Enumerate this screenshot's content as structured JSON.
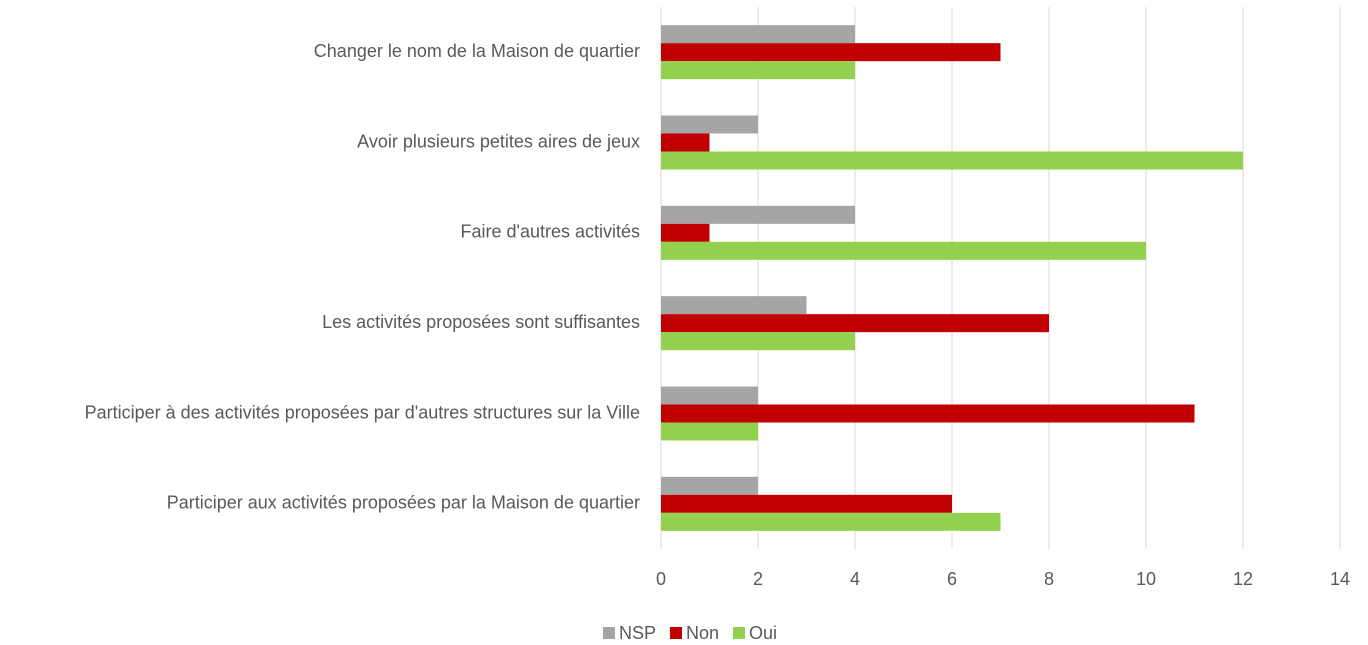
{
  "chart_data": {
    "type": "bar",
    "orientation": "horizontal",
    "categories": [
      "Changer le nom de la Maison de quartier",
      "Avoir plusieurs petites aires de jeux",
      "Faire d'autres activités",
      "Les activités proposées sont suffisantes",
      "Participer à des activités proposées par d'autres structures sur la Ville",
      "Participer aux activités proposées par la Maison de quartier"
    ],
    "series": [
      {
        "name": "NSP",
        "color": "#a5a5a5",
        "values": [
          4,
          2,
          4,
          3,
          2,
          2
        ]
      },
      {
        "name": "Non",
        "color": "#c00000",
        "values": [
          7,
          1,
          1,
          8,
          11,
          6
        ]
      },
      {
        "name": "Oui",
        "color": "#92d050",
        "values": [
          4,
          12,
          10,
          4,
          2,
          7
        ]
      }
    ],
    "xlim": [
      0,
      14
    ],
    "xticks": [
      0,
      2,
      4,
      6,
      8,
      10,
      12,
      14
    ],
    "grid": true,
    "legend": "bottom"
  }
}
